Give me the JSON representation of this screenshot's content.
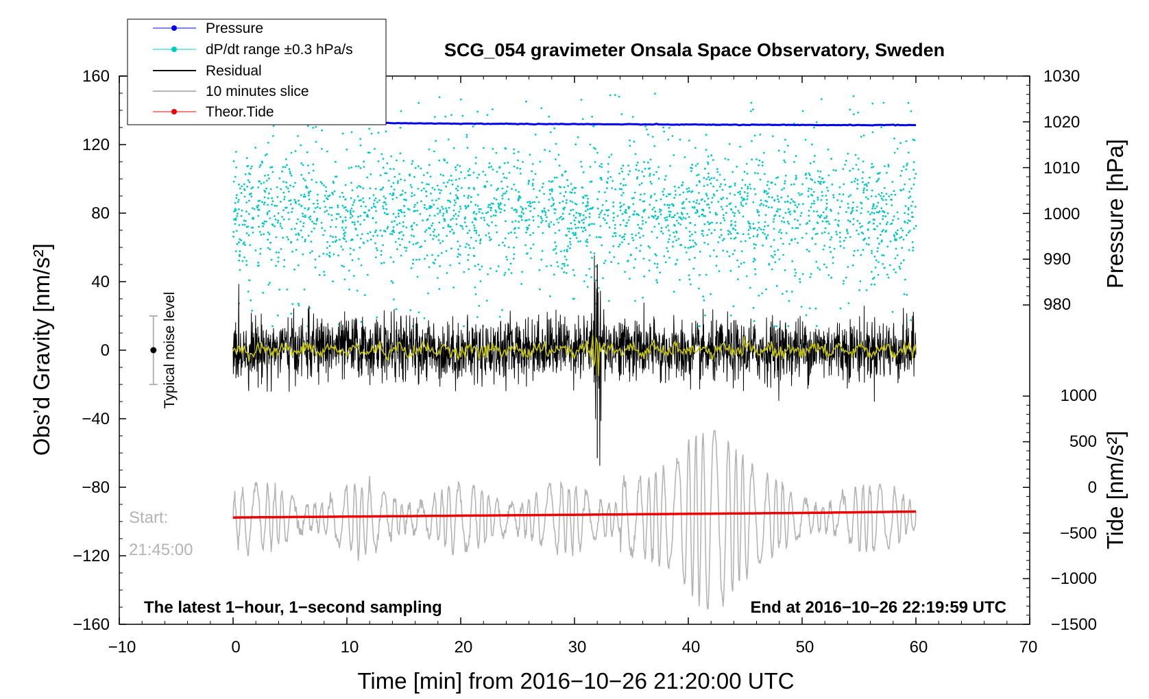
{
  "chart_data": {
    "type": "line",
    "title": "SCG_054 gravimeter Onsala Space Observatory, Sweden",
    "xlabel": "Time [min] from 2016−10−26 21:20:00 UTC",
    "ylabel_left": "Obs’d Gravity [nm/s²]",
    "ylabel_right_top": "Pressure [hPa]",
    "ylabel_right_bottom": "Tide [nm/s²]",
    "xlim": [
      -10,
      70
    ],
    "ylim": [
      -160,
      160
    ],
    "pressure_axis_range": [
      980,
      1030
    ],
    "tide_axis_range": [
      -1500,
      1000
    ],
    "x_ticks": [
      "−10",
      "0",
      "10",
      "20",
      "30",
      "40",
      "50",
      "60",
      "70"
    ],
    "y_ticks": [
      "−160",
      "−120",
      "−80",
      "−40",
      "0",
      "40",
      "80",
      "120",
      "160"
    ],
    "pressure_ticks": [
      "980",
      "990",
      "1000",
      "1010",
      "1020",
      "1030"
    ],
    "tide_ticks": [
      "−1500",
      "−1000",
      "−500",
      "0",
      "500",
      "1000"
    ],
    "legend": [
      {
        "label": "Pressure",
        "color": "#0000ee",
        "marker": true
      },
      {
        "label": "dP/dt range ±0.3 hPa/s",
        "color": "#00c8c8",
        "marker": true
      },
      {
        "label": "Residual",
        "color": "#000000",
        "marker": false
      },
      {
        "label": "10 minutes slice",
        "color": "#b4b4b4",
        "marker": false
      },
      {
        "label": "Theor.Tide",
        "color": "#ee0000",
        "marker": true
      }
    ],
    "series": [
      {
        "name": "Pressure",
        "axis": "pressure_hPa",
        "x": [
          0,
          10,
          20,
          30,
          40,
          50,
          60
        ],
        "values": [
          1019.9,
          1019.8,
          1019.6,
          1019.5,
          1019.4,
          1019.3,
          1019.3
        ]
      },
      {
        "name": "Theor.Tide",
        "axis": "tide_nm_s2",
        "x": [
          0,
          10,
          20,
          30,
          40,
          50,
          60
        ],
        "values": [
          -330,
          -320,
          -310,
          -300,
          -290,
          -280,
          -265
        ]
      },
      {
        "name": "Residual",
        "axis": "gravity_nm_s2",
        "x": [
          0,
          10,
          20,
          30,
          32,
          40,
          50,
          60
        ],
        "values": [
          0,
          2,
          -1,
          3,
          50,
          -2,
          1,
          0
        ],
        "note": "noisy ~±15 nm/s², spikes to +50 / −63 near 32 min"
      },
      {
        "name": "dP/dt range ±0.3 hPa/s",
        "axis": "gravity_nm_s2",
        "note": "scatter centred near 80 nm/s², spread roughly 15 to 160"
      },
      {
        "name": "10 minutes slice",
        "axis": "gravity_nm_s2",
        "note": "oscillating trace centred near −100 nm/s², amplitude growing to ±50 around 40–44 min"
      }
    ],
    "noise_marker": {
      "label": "Typical noise level",
      "x": -7,
      "center": 0,
      "range": [
        -20,
        20
      ]
    },
    "annotations": {
      "start_label": "Start:",
      "start_time": "21:45:00",
      "bottom_left": "The latest 1−hour, 1−second sampling",
      "bottom_right": "End at 2016−10−26 22:19:59 UTC"
    }
  }
}
